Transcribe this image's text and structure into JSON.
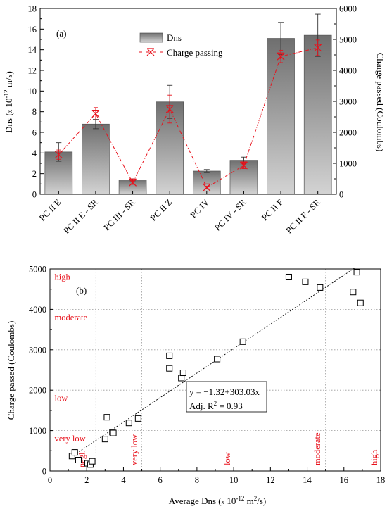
{
  "chart_data": [
    {
      "type": "bar",
      "panel_label": "(a)",
      "categories": [
        "PC II E",
        "PC II E - SR",
        "PC III - SR",
        "PC II Z",
        "PC IV",
        "PC IV - SR",
        "PC II F",
        "PC II F - SR"
      ],
      "ylabel": "Dns (x 10⁻¹² m/s)",
      "ylabel_parts": {
        "pre": "Dns (",
        "x": "x",
        "mid": " 10",
        "sup": "-12",
        "post": " m/s)"
      },
      "y2label": "Charge passed (Coulombs)",
      "ylim": [
        0,
        18
      ],
      "y2lim": [
        0,
        6000
      ],
      "yticks": [
        0,
        2,
        4,
        6,
        8,
        10,
        12,
        14,
        16,
        18
      ],
      "y2ticks": [
        0,
        1000,
        2000,
        3000,
        4000,
        5000,
        6000
      ],
      "legend_position": "top-center",
      "series": [
        {
          "name": "Dns",
          "kind": "bar",
          "axis": "left",
          "values": [
            4.1,
            6.8,
            1.4,
            8.95,
            2.25,
            3.3,
            15.1,
            15.4
          ],
          "errors": [
            0.9,
            0.45,
            0.1,
            1.6,
            0.15,
            0.3,
            1.55,
            2.05
          ]
        },
        {
          "name": "Charge passing",
          "kind": "line",
          "axis": "right",
          "color": "#e8121c",
          "values": [
            1280,
            2600,
            380,
            2750,
            220,
            930,
            4450,
            4730
          ],
          "errors": [
            150,
            200,
            60,
            450,
            40,
            100,
            200,
            250
          ]
        }
      ]
    },
    {
      "type": "scatter",
      "panel_label": "(b)",
      "xlabel": "Average Dns (x 10⁻¹² m²/s)",
      "xlabel_parts": {
        "pre": "Average Dns (",
        "x": "x",
        "mid": " 10",
        "sup": "-12",
        "post": " m",
        "sup2": "2",
        "post2": "/s)"
      },
      "ylabel": "Charge passed (Coulombs)",
      "xlim": [
        0,
        18
      ],
      "ylim": [
        0,
        5000
      ],
      "xticks": [
        0,
        2,
        4,
        6,
        8,
        10,
        12,
        14,
        16,
        18
      ],
      "yticks": [
        0,
        1000,
        2000,
        3000,
        4000,
        5000
      ],
      "grid": true,
      "points": [
        {
          "x": 1.2,
          "y": 370
        },
        {
          "x": 1.35,
          "y": 460
        },
        {
          "x": 1.55,
          "y": 270
        },
        {
          "x": 2.05,
          "y": 190
        },
        {
          "x": 2.2,
          "y": 160
        },
        {
          "x": 2.3,
          "y": 240
        },
        {
          "x": 3.0,
          "y": 790
        },
        {
          "x": 3.1,
          "y": 1330
        },
        {
          "x": 3.4,
          "y": 960
        },
        {
          "x": 3.45,
          "y": 940
        },
        {
          "x": 4.3,
          "y": 1190
        },
        {
          "x": 4.8,
          "y": 1300
        },
        {
          "x": 6.5,
          "y": 2850
        },
        {
          "x": 6.5,
          "y": 2540
        },
        {
          "x": 7.15,
          "y": 2300
        },
        {
          "x": 7.25,
          "y": 2430
        },
        {
          "x": 9.1,
          "y": 2770
        },
        {
          "x": 10.5,
          "y": 3200
        },
        {
          "x": 13.0,
          "y": 4800
        },
        {
          "x": 13.9,
          "y": 4680
        },
        {
          "x": 14.7,
          "y": 4540
        },
        {
          "x": 16.5,
          "y": 4430
        },
        {
          "x": 16.7,
          "y": 4920
        },
        {
          "x": 16.9,
          "y": 4160
        }
      ],
      "fit": {
        "intercept": -1.32,
        "slope": 303.03,
        "x_range": [
          1.2,
          16.6
        ],
        "equation": "y = −1.32+303.03x",
        "r2_label": "Adj. R",
        "r2_sup": "2",
        "r2_value": " = 0.93"
      },
      "y_zone_labels": [
        {
          "text": "high",
          "y": 4800
        },
        {
          "text": "moderate",
          "y": 3800
        },
        {
          "text": "low",
          "y": 1800
        },
        {
          "text": "very low",
          "y": 800
        },
        {
          "text": "negl.",
          "y": 300
        }
      ],
      "x_zone_labels": [
        {
          "text": "very low",
          "x": 4.75
        },
        {
          "text": "low",
          "x": 9.8
        },
        {
          "text": "moderate",
          "x": 14.7
        },
        {
          "text": "high",
          "x": 17.8
        }
      ],
      "x_zone_bounds": [
        2.5,
        5,
        15
      ]
    }
  ]
}
